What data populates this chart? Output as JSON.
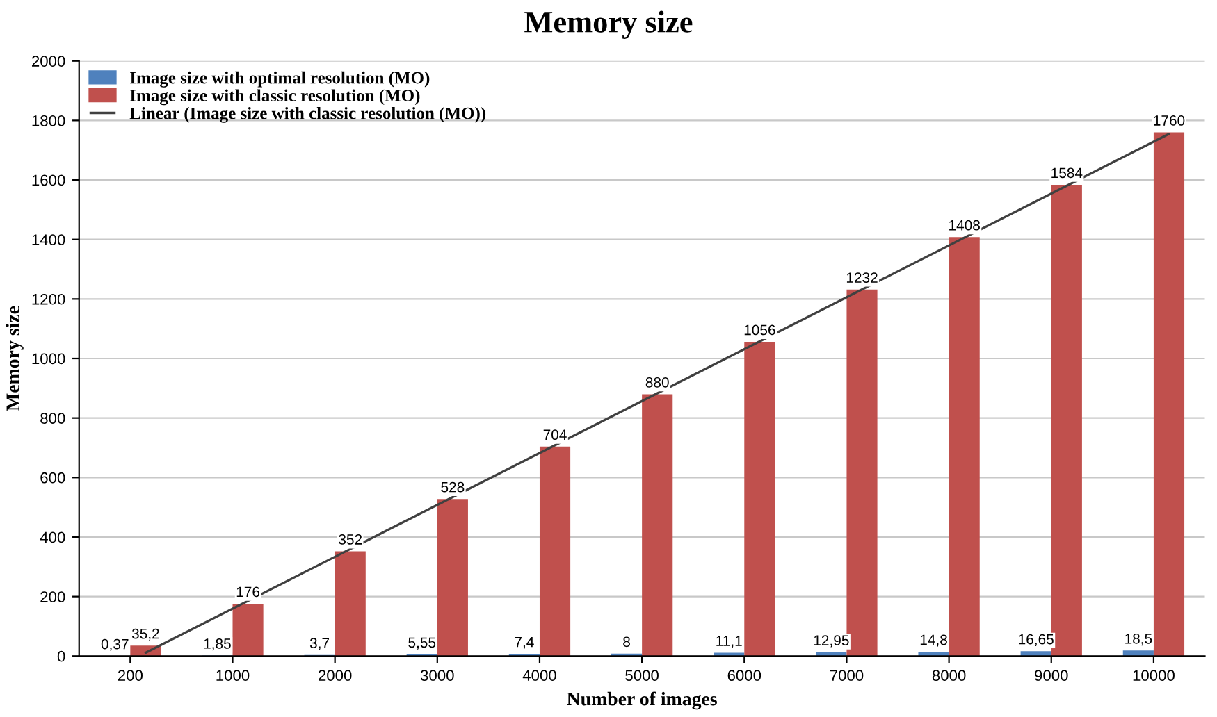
{
  "chart_data": {
    "type": "bar",
    "title": "Memory size",
    "xlabel": "Number of images",
    "ylabel": "Memory size",
    "categories": [
      "200",
      "1000",
      "2000",
      "3000",
      "4000",
      "5000",
      "6000",
      "7000",
      "8000",
      "9000",
      "10000"
    ],
    "series": [
      {
        "name": "Image size with optimal resolution (MO)",
        "color": "#4f81bd",
        "values": [
          0.37,
          1.85,
          3.7,
          5.55,
          7.4,
          8,
          11.1,
          12.95,
          14.8,
          16.65,
          18.5
        ],
        "value_labels": [
          "0,37",
          "1,85",
          "3,7",
          "5,55",
          "7,4",
          "8",
          "11,1",
          "12,95",
          "14,8",
          "16,65",
          "18,5"
        ]
      },
      {
        "name": "Image size with classic resolution (MO)",
        "color": "#c0504d",
        "values": [
          35.2,
          176,
          352,
          528,
          704,
          880,
          1056,
          1232,
          1408,
          1584,
          1760
        ],
        "value_labels": [
          "35,2",
          "176",
          "352",
          "528",
          "704",
          "880",
          "1056",
          "1232",
          "1408",
          "1584",
          "1760"
        ]
      },
      {
        "name": "Linear (Image size with classic resolution (MO))",
        "type": "line",
        "color": "#404040",
        "x": [
          "200",
          "10000"
        ],
        "values": [
          11,
          1755
        ]
      }
    ],
    "ylim": [
      0,
      2000
    ],
    "yticks": [
      0,
      200,
      400,
      600,
      800,
      1000,
      1200,
      1400,
      1600,
      1800,
      2000
    ],
    "grid": "y",
    "legend": "top left"
  }
}
